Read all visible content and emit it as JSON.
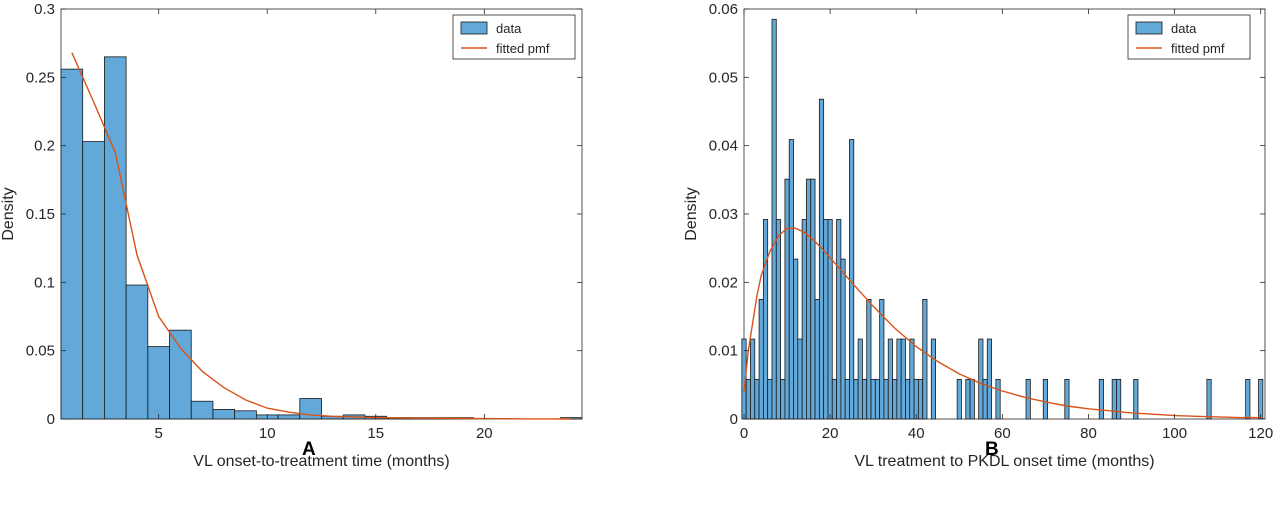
{
  "panels": [
    {
      "label": "A"
    },
    {
      "label": "B"
    }
  ],
  "colors": {
    "bar_fill": "#62a8d9",
    "bar_edge": "#1a1a1a",
    "fit_line": "#d95319"
  },
  "chart_data": [
    {
      "type": "bar",
      "title": "",
      "xlabel": "VL onset-to-treatment time (months)",
      "ylabel": "Density",
      "xlim": [
        0.5,
        24.5
      ],
      "ylim": [
        0,
        0.3
      ],
      "xticks": [
        5,
        10,
        15,
        20
      ],
      "yticks": [
        0,
        0.05,
        0.1,
        0.15,
        0.2,
        0.25,
        0.3
      ],
      "ytick_labels": [
        "0",
        "0.05",
        "0.1",
        "0.15",
        "0.2",
        "0.25",
        "0.3"
      ],
      "grid": false,
      "legend": {
        "placement": "top-right",
        "entries": [
          "data",
          "fitted pmf"
        ]
      },
      "series": [
        {
          "name": "data",
          "kind": "histogram",
          "bin_width": 1,
          "bin_centers": [
            1,
            2,
            3,
            4,
            5,
            6,
            7,
            8,
            9,
            10,
            11,
            12,
            13,
            14,
            15,
            16,
            17,
            18,
            19,
            20,
            21,
            22,
            23,
            24
          ],
          "values": [
            0.256,
            0.203,
            0.265,
            0.098,
            0.053,
            0.065,
            0.013,
            0.007,
            0.006,
            0.003,
            0.003,
            0.015,
            0.002,
            0.003,
            0.002,
            0.001,
            0.001,
            0.001,
            0.001,
            0,
            0,
            0,
            0,
            0.001
          ]
        },
        {
          "name": "fitted pmf",
          "kind": "line",
          "x": [
            1,
            2,
            3,
            4,
            5,
            6,
            7,
            8,
            9,
            10,
            11,
            12,
            13,
            14,
            15,
            16,
            17,
            18,
            19,
            20,
            21,
            22,
            23,
            24
          ],
          "y": [
            0.268,
            0.232,
            0.195,
            0.12,
            0.075,
            0.052,
            0.035,
            0.023,
            0.014,
            0.008,
            0.005,
            0.003,
            0.002,
            0.0015,
            0.001,
            0.0008,
            0.0006,
            0.0005,
            0.0004,
            0.0003,
            0.0002,
            0.0001,
            0.0001,
            0
          ]
        }
      ]
    },
    {
      "type": "bar",
      "title": "",
      "xlabel": "VL treatment to PKDL onset time (months)",
      "ylabel": "Density",
      "xlim": [
        0,
        121
      ],
      "ylim": [
        0,
        0.06
      ],
      "xticks": [
        0,
        20,
        40,
        60,
        80,
        100,
        120
      ],
      "yticks": [
        0,
        0.01,
        0.02,
        0.03,
        0.04,
        0.05,
        0.06
      ],
      "ytick_labels": [
        "0",
        "0.01",
        "0.02",
        "0.03",
        "0.04",
        "0.05",
        "0.06"
      ],
      "grid": false,
      "legend": {
        "placement": "top-right",
        "entries": [
          "data",
          "fitted pmf"
        ]
      },
      "series": [
        {
          "name": "data",
          "kind": "histogram",
          "bin_width": 1,
          "bin_centers": [
            0,
            1,
            2,
            3,
            4,
            5,
            6,
            7,
            8,
            9,
            10,
            11,
            12,
            13,
            14,
            15,
            16,
            17,
            18,
            19,
            20,
            21,
            22,
            23,
            24,
            25,
            26,
            27,
            28,
            29,
            30,
            31,
            32,
            33,
            34,
            35,
            36,
            37,
            38,
            39,
            40,
            41,
            42,
            43,
            44,
            45,
            46,
            47,
            48,
            49,
            50,
            51,
            52,
            53,
            54,
            55,
            56,
            57,
            58,
            59,
            60,
            61,
            62,
            63,
            64,
            65,
            66,
            67,
            68,
            69,
            70,
            71,
            72,
            73,
            74,
            75,
            76,
            77,
            78,
            79,
            80,
            81,
            82,
            83,
            84,
            85,
            86,
            87,
            88,
            89,
            90,
            91,
            92,
            93,
            94,
            95,
            96,
            97,
            98,
            99,
            100,
            101,
            102,
            103,
            104,
            105,
            106,
            107,
            108,
            109,
            110,
            111,
            112,
            113,
            114,
            115,
            116,
            117,
            118,
            119,
            120
          ],
          "values": [
            0.0117,
            0.0058,
            0.0117,
            0.0058,
            0.0175,
            0.0292,
            0.0058,
            0.0585,
            0.0292,
            0.0058,
            0.0351,
            0.0409,
            0.0234,
            0.0117,
            0.0292,
            0.0351,
            0.0351,
            0.0175,
            0.0468,
            0.0292,
            0.0292,
            0.0058,
            0.0292,
            0.0234,
            0.0058,
            0.0409,
            0.0058,
            0.0117,
            0.0058,
            0.0175,
            0.0058,
            0.0058,
            0.0175,
            0.0058,
            0.0117,
            0.0058,
            0.0117,
            0.0117,
            0.0058,
            0.0117,
            0.0058,
            0.0058,
            0.0175,
            0,
            0.0117,
            0,
            0,
            0,
            0,
            0,
            0.0058,
            0,
            0.0058,
            0.0058,
            0,
            0.0117,
            0.0058,
            0.0117,
            0,
            0.0058,
            0,
            0,
            0,
            0,
            0,
            0,
            0.0058,
            0,
            0,
            0,
            0.0058,
            0,
            0,
            0,
            0,
            0.0058,
            0,
            0,
            0,
            0,
            0,
            0,
            0,
            0.0058,
            0,
            0,
            0.0058,
            0.0058,
            0,
            0,
            0,
            0.0058,
            0,
            0,
            0,
            0,
            0,
            0,
            0,
            0,
            0,
            0,
            0,
            0,
            0,
            0,
            0,
            0,
            0.0058,
            0,
            0,
            0,
            0,
            0,
            0,
            0,
            0,
            0.0058,
            0,
            0,
            0.0058
          ],
          "note_rows": []
        },
        {
          "name": "fitted pmf",
          "kind": "line",
          "x": [
            0,
            1,
            2,
            3,
            4,
            6,
            8,
            10,
            12,
            14,
            16,
            18,
            20,
            25,
            30,
            35,
            40,
            45,
            50,
            55,
            60,
            65,
            70,
            75,
            80,
            85,
            90,
            95,
            100,
            105,
            110,
            115,
            120
          ],
          "y": [
            0.004,
            0.01,
            0.014,
            0.018,
            0.021,
            0.0245,
            0.0268,
            0.0279,
            0.0279,
            0.0273,
            0.0263,
            0.025,
            0.0236,
            0.02,
            0.0165,
            0.0133,
            0.0106,
            0.0084,
            0.0066,
            0.0052,
            0.0041,
            0.0032,
            0.0025,
            0.0019,
            0.0015,
            0.0012,
            0.0009,
            0.0007,
            0.0005,
            0.0004,
            0.0003,
            0.0002,
            0.0002
          ]
        }
      ]
    }
  ]
}
